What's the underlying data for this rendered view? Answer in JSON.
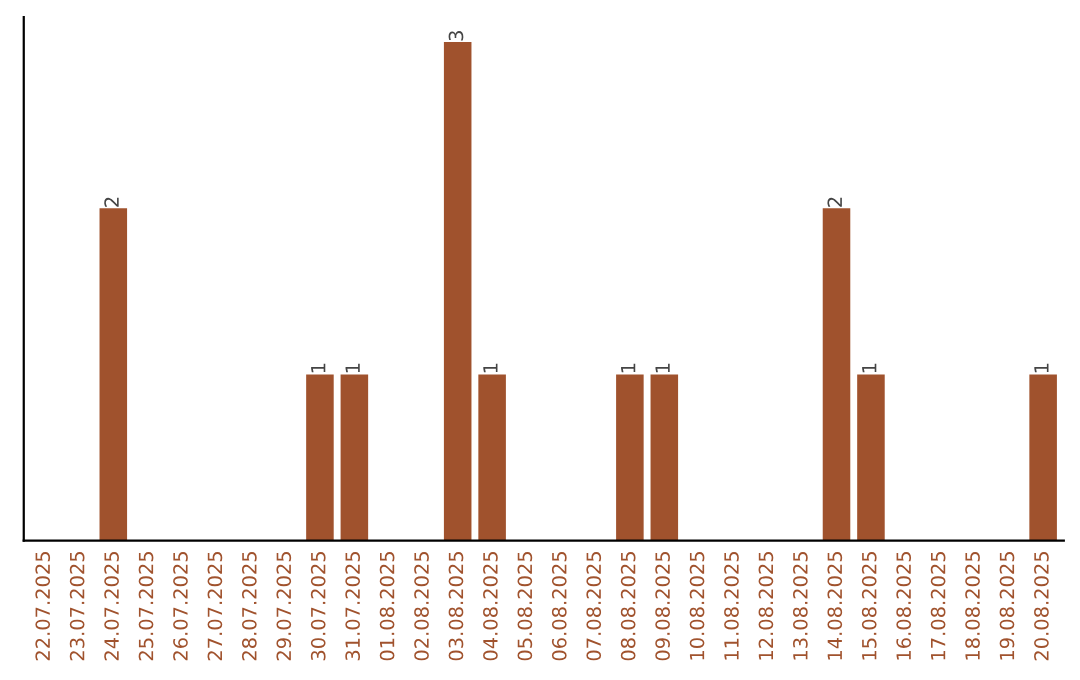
{
  "chart_data": {
    "type": "bar",
    "categories": [
      "22.07.2025",
      "23.07.2025",
      "24.07.2025",
      "25.07.2025",
      "26.07.2025",
      "27.07.2025",
      "28.07.2025",
      "29.07.2025",
      "30.07.2025",
      "31.07.2025",
      "01.08.2025",
      "02.08.2025",
      "03.08.2025",
      "04.08.2025",
      "05.08.2025",
      "06.08.2025",
      "07.08.2025",
      "08.08.2025",
      "09.08.2025",
      "10.08.2025",
      "11.08.2025",
      "12.08.2025",
      "13.08.2025",
      "14.08.2025",
      "15.08.2025",
      "16.08.2025",
      "17.08.2025",
      "18.08.2025",
      "19.08.2025",
      "20.08.2025"
    ],
    "values": [
      0,
      0,
      2,
      0,
      0,
      0,
      0,
      0,
      1,
      1,
      0,
      0,
      3,
      1,
      0,
      0,
      0,
      1,
      1,
      0,
      0,
      0,
      0,
      2,
      1,
      0,
      0,
      0,
      0,
      1
    ],
    "value_labels": [
      null,
      null,
      "2",
      null,
      null,
      null,
      null,
      null,
      "1",
      "1",
      null,
      null,
      "3",
      "1",
      null,
      null,
      null,
      "1",
      "1",
      null,
      null,
      null,
      null,
      "2",
      "1",
      null,
      null,
      null,
      null,
      "1"
    ],
    "color": "#a0522d",
    "tick_labels": "x",
    "grid": false
  }
}
